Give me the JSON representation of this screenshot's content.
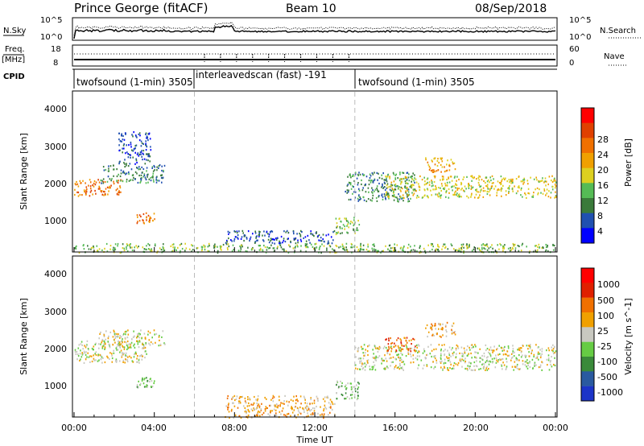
{
  "header": {
    "station": "Prince George (fitACF)",
    "beam": "Beam 10",
    "date": "08/Sep/2018"
  },
  "top_panels": {
    "nsky_label": "N.Sky",
    "nsky_ticks": [
      "10^5",
      "10^0"
    ],
    "nsearch_label": "N.Search",
    "nsearch_ticks": [
      "10^5",
      "10^0"
    ],
    "freq_label": "Freq.",
    "freq_unit": "[MHz]",
    "freq_ticks": [
      "18",
      "8"
    ],
    "nave_label": "Nave",
    "nave_ticks": [
      "60",
      "0"
    ],
    "cpid_label": "CPID",
    "cpid_segments": [
      {
        "label": "twofsound (1-min) 3505",
        "start": 0.0,
        "end": 6.0
      },
      {
        "label": "interleavedscan (fast) -191",
        "start": 6.0,
        "end": 14.0
      },
      {
        "label": "twofsound (1-min) 3505",
        "start": 14.0,
        "end": 24.0
      }
    ]
  },
  "power_panel": {
    "ylabel": "Slant Range [km]",
    "yticks": [
      "4000",
      "3000",
      "2000",
      "1000"
    ],
    "colorbar_label": "Power [dB]",
    "colorbar_ticks": [
      "28",
      "24",
      "20",
      "16",
      "12",
      "8",
      "4"
    ],
    "colors": [
      "#0000ff",
      "#2050b0",
      "#3a7a3a",
      "#55bb55",
      "#ddd020",
      "#f0a000",
      "#f07000",
      "#e04000",
      "#ff0000"
    ]
  },
  "velocity_panel": {
    "ylabel": "Slant Range [km]",
    "yticks": [
      "4000",
      "3000",
      "2000",
      "1000"
    ],
    "colorbar_label": "Velocity [m s^-1]",
    "colorbar_ticks": [
      "1000",
      "500",
      "100",
      "25",
      "-25",
      "-100",
      "-500",
      "-1000"
    ],
    "colors": [
      "#1c34c8",
      "#2a5aa0",
      "#3a8a3a",
      "#66cc44",
      "#c8c8c0",
      "#f0a000",
      "#f07000",
      "#e02000",
      "#ff0000"
    ]
  },
  "xaxis": {
    "label": "Time UT",
    "ticks": [
      "00:00",
      "04:00",
      "08:00",
      "12:00",
      "16:00",
      "20:00",
      "00:00"
    ]
  },
  "chart_data": {
    "type": "heatmap",
    "x_units": "hours UT",
    "xlim": [
      0,
      24
    ],
    "ylim": [
      200,
      4600
    ],
    "scan_boundaries": [
      6.0,
      14.0
    ],
    "power_regions": [
      {
        "t0": 0.0,
        "t1": 2.4,
        "r0": 1750,
        "r1": 2200,
        "level": 6
      },
      {
        "t0": 1.3,
        "t1": 4.5,
        "r0": 2100,
        "r1": 2600,
        "level": 2
      },
      {
        "t0": 2.2,
        "t1": 3.8,
        "r0": 2600,
        "r1": 3500,
        "level": 1
      },
      {
        "t0": 3.1,
        "t1": 4.0,
        "r0": 1000,
        "r1": 1300,
        "level": 6
      },
      {
        "t0": 0.0,
        "t1": 24.0,
        "r0": 200,
        "r1": 450,
        "level": 3
      },
      {
        "t0": 7.5,
        "t1": 13.0,
        "r0": 450,
        "r1": 800,
        "level": 1
      },
      {
        "t0": 13.5,
        "t1": 17.0,
        "r0": 1600,
        "r1": 2400,
        "level": 2
      },
      {
        "t0": 15.5,
        "t1": 24.0,
        "r0": 1700,
        "r1": 2300,
        "level": 4
      },
      {
        "t0": 17.5,
        "t1": 19.0,
        "r0": 2400,
        "r1": 2800,
        "level": 5
      },
      {
        "t0": 13.0,
        "t1": 14.2,
        "r0": 700,
        "r1": 1200,
        "level": 3
      }
    ],
    "velocity_regions": [
      {
        "t0": 0.0,
        "t1": 3.6,
        "r0": 1700,
        "r1": 2300,
        "level": 4
      },
      {
        "t0": 1.2,
        "t1": 4.5,
        "r0": 2100,
        "r1": 2600,
        "level": 4
      },
      {
        "t0": 3.1,
        "t1": 4.0,
        "r0": 1000,
        "r1": 1300,
        "level": 3
      },
      {
        "t0": 7.5,
        "t1": 13.0,
        "r0": 200,
        "r1": 800,
        "level": 5
      },
      {
        "t0": 14.0,
        "t1": 24.0,
        "r0": 1500,
        "r1": 2200,
        "level": 4
      },
      {
        "t0": 15.5,
        "t1": 17.0,
        "r0": 2000,
        "r1": 2400,
        "level": 6
      },
      {
        "t0": 17.5,
        "t1": 19.0,
        "r0": 2400,
        "r1": 2800,
        "level": 5
      },
      {
        "t0": 13.0,
        "t1": 14.2,
        "r0": 700,
        "r1": 1200,
        "level": 3
      }
    ]
  }
}
